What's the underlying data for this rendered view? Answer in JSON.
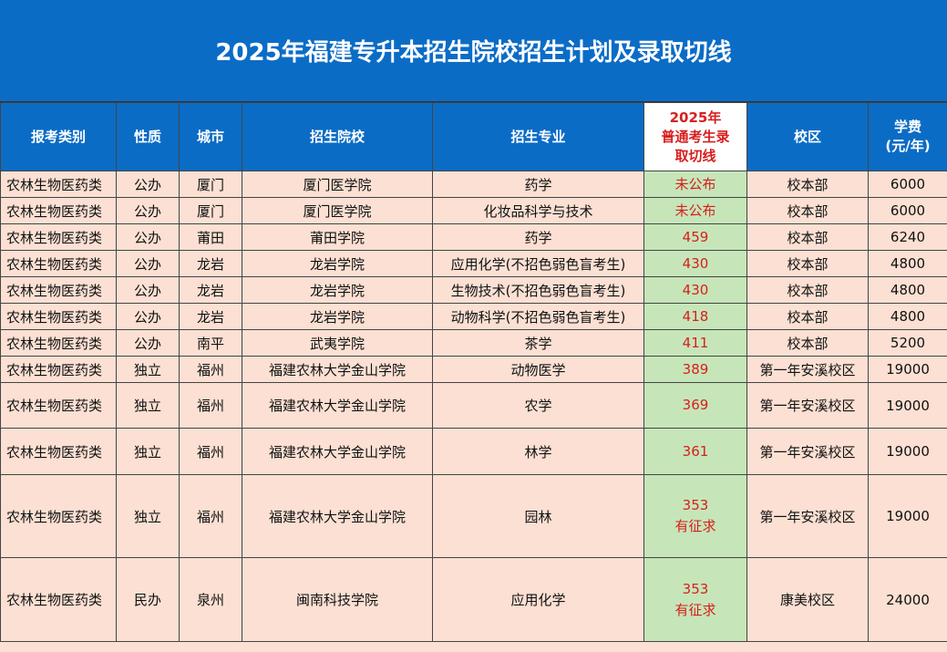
{
  "header": {
    "title": "2025年福建专升本招生院校招生计划及录取切线"
  },
  "table": {
    "columns": [
      "报考类别",
      "性质",
      "城市",
      "招生院校",
      "招生专业",
      [
        "2025年",
        "普通考生录",
        "取切线"
      ],
      "校区",
      [
        "学费",
        "(元/年)"
      ]
    ],
    "rows": [
      [
        "农林生物医药类",
        "公办",
        "厦门",
        "厦门医学院",
        "药学",
        "未公布",
        "校本部",
        "6000"
      ],
      [
        "农林生物医药类",
        "公办",
        "厦门",
        "厦门医学院",
        "化妆品科学与技术",
        "未公布",
        "校本部",
        "6000"
      ],
      [
        "农林生物医药类",
        "公办",
        "莆田",
        "莆田学院",
        "药学",
        "459",
        "校本部",
        "6240"
      ],
      [
        "农林生物医药类",
        "公办",
        "龙岩",
        "龙岩学院",
        "应用化学(不招色弱色盲考生)",
        "430",
        "校本部",
        "4800"
      ],
      [
        "农林生物医药类",
        "公办",
        "龙岩",
        "龙岩学院",
        "生物技术(不招色弱色盲考生)",
        "430",
        "校本部",
        "4800"
      ],
      [
        "农林生物医药类",
        "公办",
        "龙岩",
        "龙岩学院",
        "动物科学(不招色弱色盲考生)",
        "418",
        "校本部",
        "4800"
      ],
      [
        "农林生物医药类",
        "公办",
        "南平",
        "武夷学院",
        "茶学",
        "411",
        "校本部",
        "5200"
      ],
      [
        "农林生物医药类",
        "独立",
        "福州",
        "福建农林大学金山学院",
        "动物医学",
        "389",
        "第一年安溪校区",
        "19000"
      ],
      [
        "农林生物医药类",
        "独立",
        "福州",
        "福建农林大学金山学院",
        "农学",
        "369",
        "第一年安溪校区",
        "19000"
      ],
      [
        "农林生物医药类",
        "独立",
        "福州",
        "福建农林大学金山学院",
        "林学",
        "361",
        "第一年安溪校区",
        "19000"
      ],
      [
        "农林生物医药类",
        "独立",
        "福州",
        "福建农林大学金山学院",
        "园林",
        [
          "353",
          "有征求"
        ],
        "第一年安溪校区",
        "19000"
      ],
      [
        "农林生物医药类",
        "民办",
        "泉州",
        "闽南科技学院",
        "应用化学",
        [
          "353",
          "有征求"
        ],
        "康美校区",
        "24000"
      ]
    ]
  }
}
